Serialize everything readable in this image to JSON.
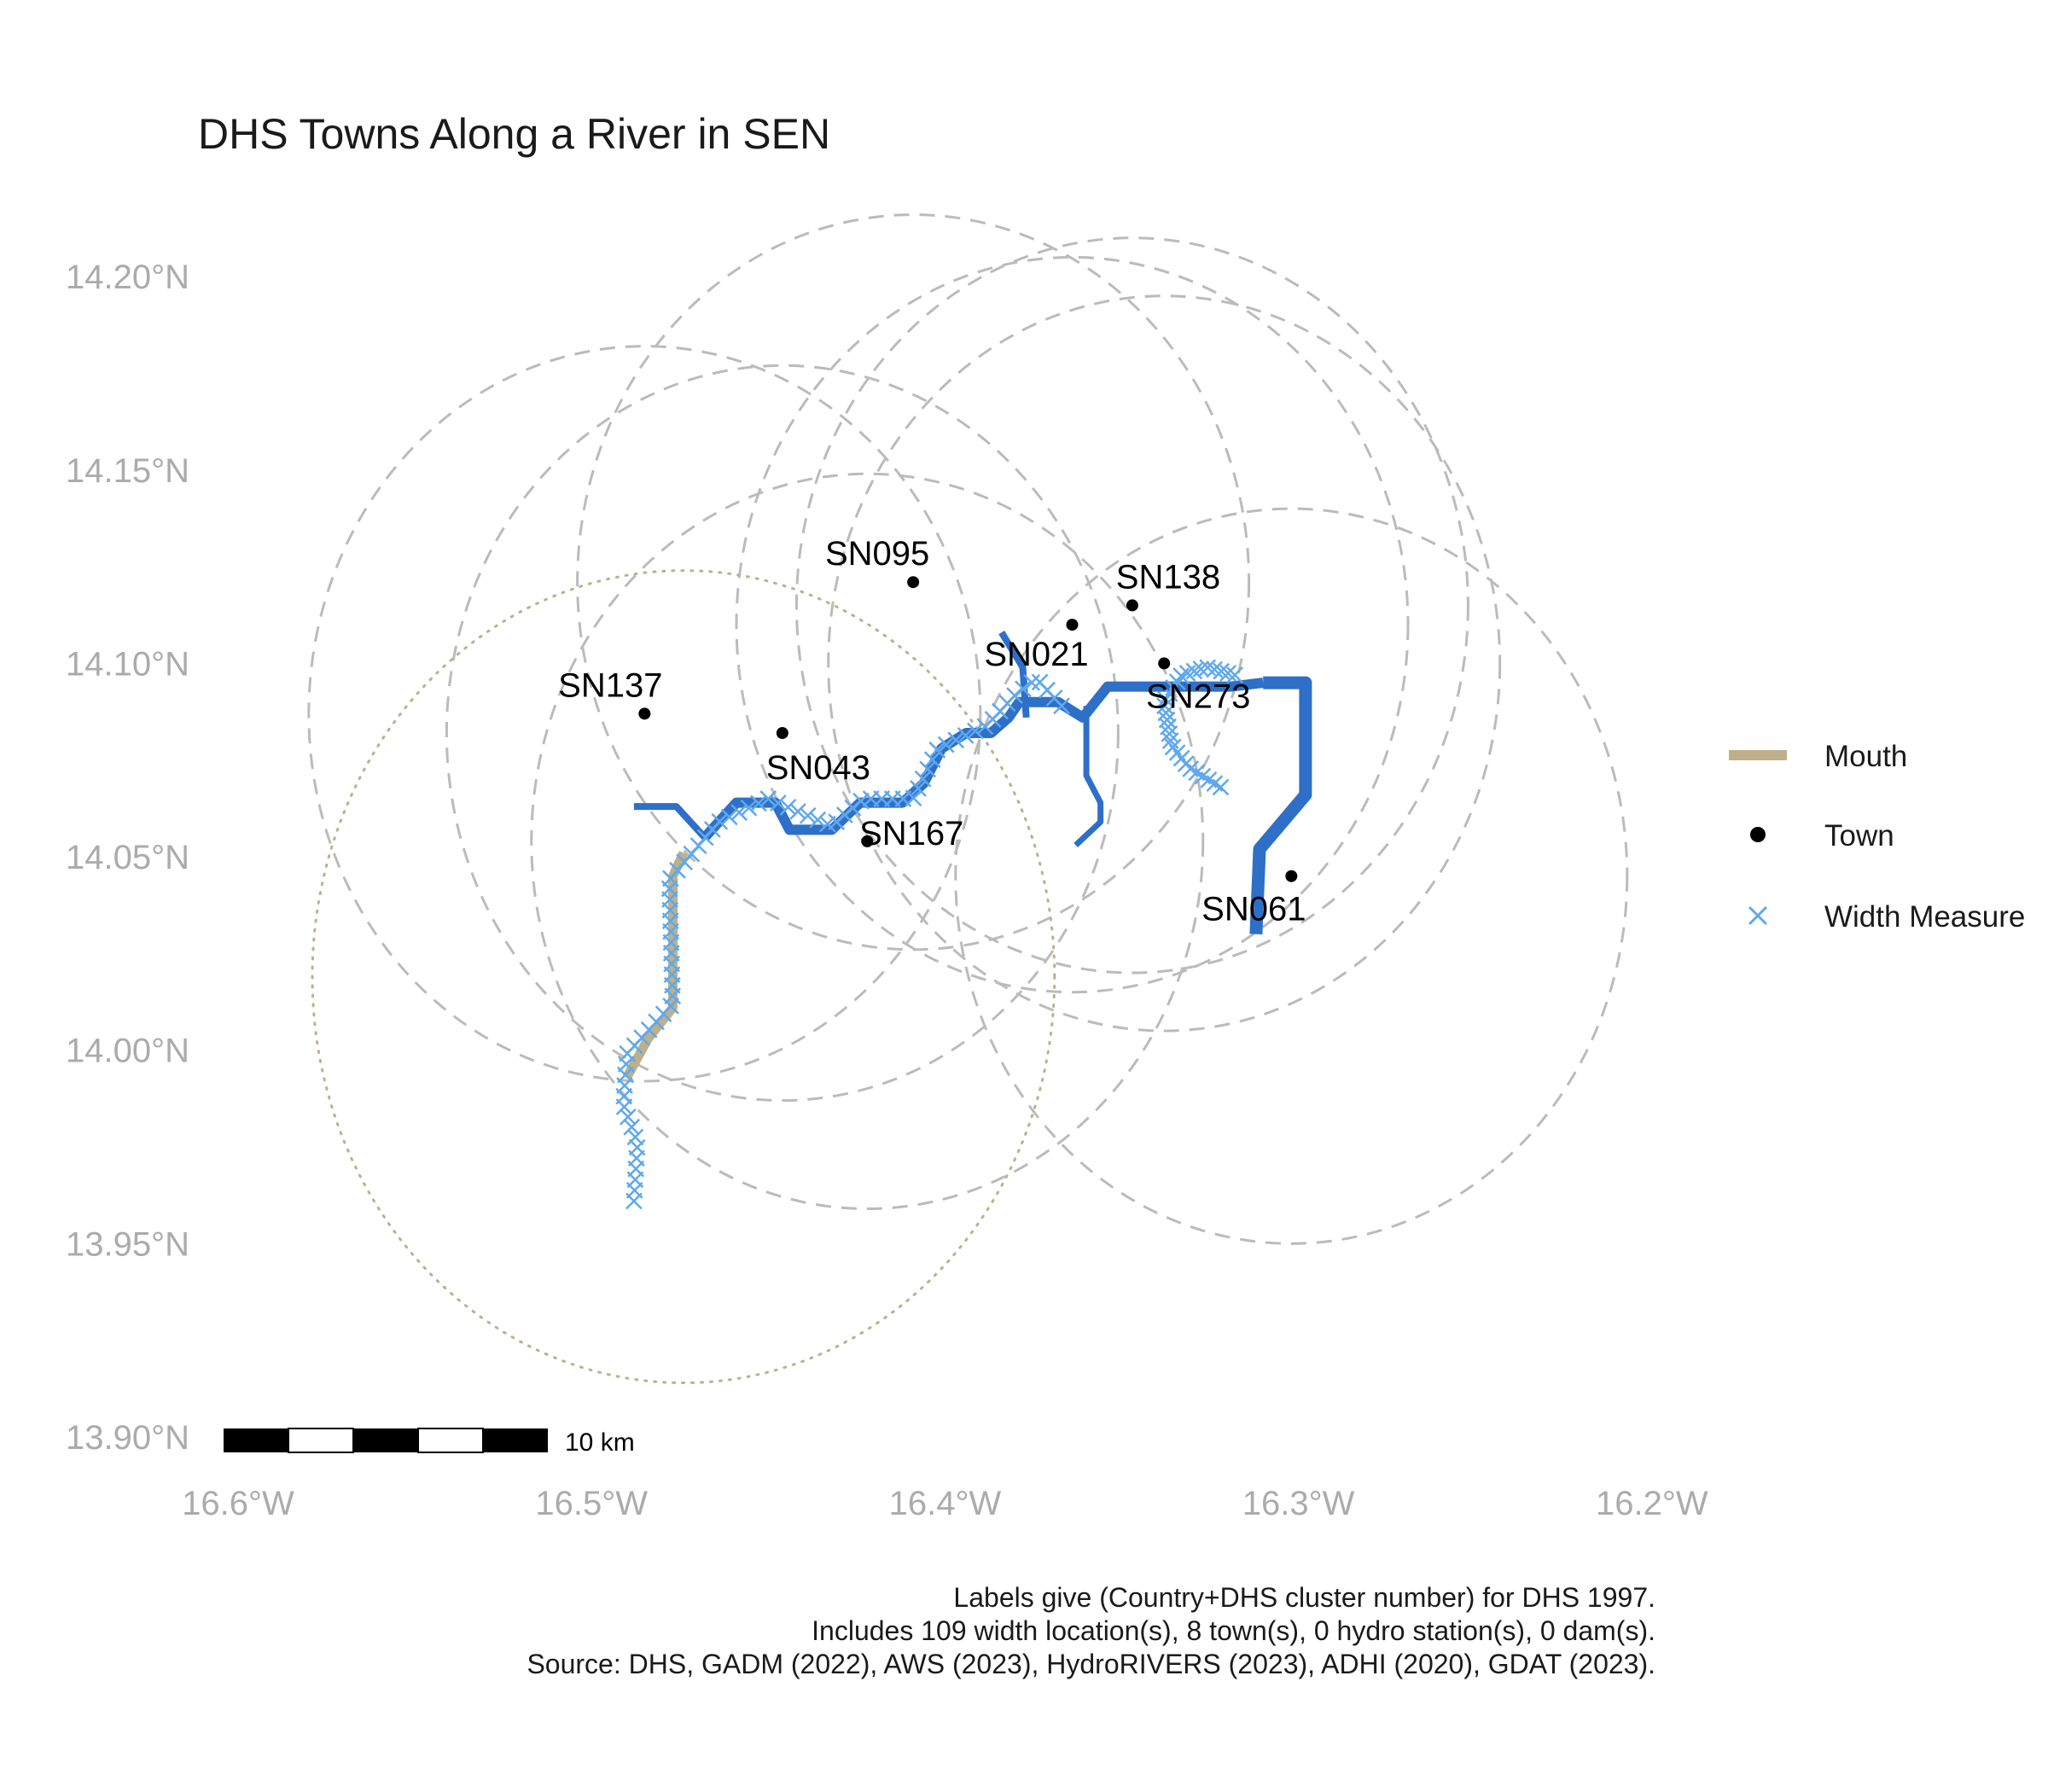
{
  "title": "DHS Towns Along a River in SEN",
  "chart_data": {
    "type": "map",
    "lon_range": [
      -16.6,
      -16.2
    ],
    "lat_range": [
      13.9,
      14.2
    ],
    "x_ticks": [
      {
        "value": -16.6,
        "label": "16.6°W"
      },
      {
        "value": -16.5,
        "label": "16.5°W"
      },
      {
        "value": -16.4,
        "label": "16.4°W"
      },
      {
        "value": -16.3,
        "label": "16.3°W"
      },
      {
        "value": -16.2,
        "label": "16.2°W"
      }
    ],
    "y_ticks": [
      {
        "value": 14.2,
        "label": "14.20°N"
      },
      {
        "value": 14.15,
        "label": "14.15°N"
      },
      {
        "value": 14.1,
        "label": "14.10°N"
      },
      {
        "value": 14.05,
        "label": "14.05°N"
      },
      {
        "value": 14.0,
        "label": "14.00°N"
      },
      {
        "value": 13.95,
        "label": "13.95°N"
      },
      {
        "value": 13.9,
        "label": "13.90°N"
      }
    ],
    "towns": [
      {
        "id": "SN095",
        "lon": -16.409,
        "lat": 14.121
      },
      {
        "id": "SN138",
        "lon": -16.347,
        "lat": 14.115
      },
      {
        "id": "SN021",
        "lon": -16.364,
        "lat": 14.11
      },
      {
        "id": "SN273",
        "lon": -16.338,
        "lat": 14.1
      },
      {
        "id": "SN137",
        "lon": -16.485,
        "lat": 14.087
      },
      {
        "id": "SN043",
        "lon": -16.446,
        "lat": 14.082
      },
      {
        "id": "SN167",
        "lon": -16.422,
        "lat": 14.054
      },
      {
        "id": "SN061",
        "lon": -16.302,
        "lat": 14.045
      }
    ],
    "buffers": [
      {
        "lon": -16.409,
        "lat": 14.121,
        "r": 0.095
      },
      {
        "lon": -16.347,
        "lat": 14.115,
        "r": 0.095
      },
      {
        "lon": -16.364,
        "lat": 14.11,
        "r": 0.095
      },
      {
        "lon": -16.338,
        "lat": 14.1,
        "r": 0.095
      },
      {
        "lon": -16.485,
        "lat": 14.087,
        "r": 0.095
      },
      {
        "lon": -16.446,
        "lat": 14.082,
        "r": 0.095
      },
      {
        "lon": -16.422,
        "lat": 14.054,
        "r": 0.095
      },
      {
        "lon": -16.302,
        "lat": 14.045,
        "r": 0.095
      }
    ],
    "mouth_buffer": {
      "lon": -16.474,
      "lat": 14.019,
      "r": 0.105
    },
    "rivers": [
      {
        "width": 8,
        "pts": [
          [
            -16.488,
            14.063
          ],
          [
            -16.476,
            14.063
          ],
          [
            -16.468,
            14.055
          ]
        ]
      },
      {
        "width": 8,
        "pts": [
          [
            -16.384,
            14.108
          ],
          [
            -16.378,
            14.099
          ],
          [
            -16.377,
            14.086
          ]
        ]
      },
      {
        "width": 7,
        "pts": [
          [
            -16.36,
            14.089
          ],
          [
            -16.36,
            14.071
          ],
          [
            -16.356,
            14.064
          ],
          [
            -16.356,
            14.059
          ],
          [
            -16.363,
            14.053
          ]
        ]
      },
      {
        "width": 12,
        "pts": [
          [
            -16.468,
            14.055
          ],
          [
            -16.459,
            14.064
          ],
          [
            -16.448,
            14.064
          ],
          [
            -16.444,
            14.057
          ],
          [
            -16.432,
            14.057
          ],
          [
            -16.424,
            14.064
          ],
          [
            -16.412,
            14.064
          ],
          [
            -16.406,
            14.069
          ],
          [
            -16.401,
            14.078
          ],
          [
            -16.394,
            14.082
          ],
          [
            -16.387,
            14.082
          ],
          [
            -16.382,
            14.086
          ],
          [
            -16.379,
            14.09
          ],
          [
            -16.368,
            14.09
          ],
          [
            -16.361,
            14.086
          ],
          [
            -16.354,
            14.094
          ],
          [
            -16.343,
            14.094
          ],
          [
            -16.319,
            14.094
          ],
          [
            -16.31,
            14.095
          ]
        ]
      },
      {
        "width": 15,
        "pts": [
          [
            -16.31,
            14.095
          ],
          [
            -16.298,
            14.095
          ],
          [
            -16.298,
            14.066
          ],
          [
            -16.311,
            14.052
          ],
          [
            -16.312,
            14.03
          ]
        ]
      }
    ],
    "mouth": [
      [
        -16.474,
        14.051
      ],
      [
        -16.477,
        14.045
      ],
      [
        -16.477,
        14.025
      ],
      [
        -16.477,
        14.011
      ],
      [
        -16.484,
        14.003
      ],
      [
        -16.487,
        13.998
      ],
      [
        -16.49,
        13.993
      ]
    ],
    "width_groups": [
      {
        "pts": [
          [
            -16.488,
            13.961
          ],
          [
            -16.487,
            13.976
          ],
          [
            -16.491,
            13.986
          ],
          [
            -16.49,
            13.999
          ],
          [
            -16.477,
            14.012
          ],
          [
            -16.478,
            14.044
          ],
          [
            -16.464,
            14.059
          ],
          [
            -16.45,
            14.065
          ],
          [
            -16.432,
            14.058
          ],
          [
            -16.423,
            14.065
          ],
          [
            -16.409,
            14.065
          ],
          [
            -16.402,
            14.078
          ],
          [
            -16.388,
            14.084
          ],
          [
            -16.38,
            14.092
          ],
          [
            -16.374,
            14.096
          ],
          [
            -16.367,
            14.089
          ]
        ],
        "n": 80
      },
      {
        "pts": [
          [
            -16.322,
            14.068
          ],
          [
            -16.331,
            14.073
          ],
          [
            -16.336,
            14.079
          ],
          [
            -16.338,
            14.09
          ],
          [
            -16.333,
            14.097
          ],
          [
            -16.326,
            14.099
          ],
          [
            -16.318,
            14.097
          ]
        ],
        "n": 29
      }
    ],
    "legend": [
      {
        "label": "Mouth",
        "key": "mouth"
      },
      {
        "label": "Town",
        "key": "town"
      },
      {
        "label": "Width Measure",
        "key": "width"
      }
    ],
    "scale_bar": {
      "label": "10 km"
    },
    "caption": [
      "Labels give (Country+DHS cluster number) for DHS 1997.",
      "Includes 109 width location(s), 8 town(s), 0 hydro station(s), 0 dam(s).",
      "Source: DHS, GADM (2022), AWS (2023), HydroRIVERS (2023), ADHI (2020), GDAT (2023)."
    ],
    "colors": {
      "river": "#2E6FC8",
      "mouth": "#BFB089",
      "width_measure": "#5FA8EE",
      "buffer": "#BBBBBB",
      "town": "#000000",
      "axis_text": "#ABABAB"
    }
  }
}
